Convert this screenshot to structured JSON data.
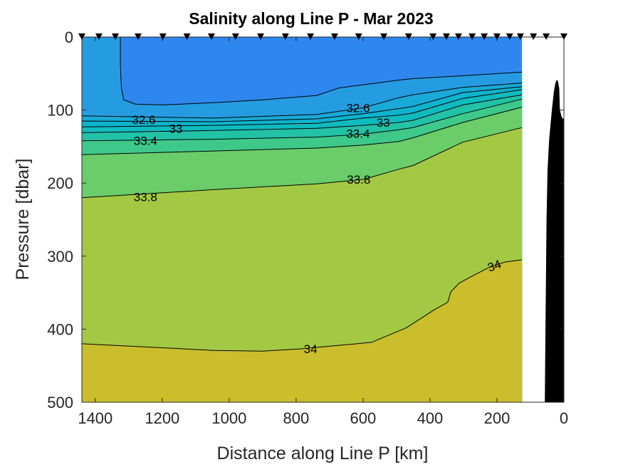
{
  "chart_data": {
    "type": "contour",
    "title": "Salinity along Line P - Mar 2023",
    "xlabel": "Distance along Line P [km]",
    "ylabel": "Pressure [dbar]",
    "xlim": [
      0,
      1440
    ],
    "ylim": [
      0,
      500
    ],
    "x_reversed": true,
    "y_reversed": true,
    "data_extent_km": [
      125,
      1440
    ],
    "xticks": [
      1400,
      1200,
      1000,
      800,
      600,
      400,
      200,
      0
    ],
    "yticks": [
      0,
      100,
      200,
      300,
      400,
      500
    ],
    "stations_km": [
      1440,
      1389,
      1340,
      1272,
      1198,
      1126,
      1053,
      981,
      906,
      832,
      757,
      685,
      613,
      538,
      464,
      391,
      351,
      315,
      274,
      238,
      200,
      162,
      130,
      91,
      53,
      0
    ],
    "base_color": "#2e87ee",
    "contours": [
      {
        "level": 32.4,
        "fill_below": "#259ce2",
        "points": [
          [
            1325,
            0
          ],
          [
            1325,
            40
          ],
          [
            1322,
            70
          ],
          [
            1315,
            86
          ],
          [
            1280,
            92
          ],
          [
            1200,
            93
          ],
          [
            1046,
            90
          ],
          [
            900,
            86
          ],
          [
            738,
            80
          ],
          [
            674,
            70
          ],
          [
            493,
            59
          ],
          [
            451,
            57
          ],
          [
            302,
            53
          ],
          [
            125,
            48
          ]
        ]
      },
      {
        "level": 32.6,
        "fill_below": "#1aaad8",
        "points": [
          [
            1440,
            108
          ],
          [
            1046,
            111
          ],
          [
            738,
            106
          ],
          [
            600,
            97
          ],
          [
            493,
            83
          ],
          [
            451,
            79
          ],
          [
            302,
            69
          ],
          [
            125,
            63
          ]
        ]
      },
      {
        "level": 32.8,
        "fill_below": "#0db4cf",
        "points": [
          [
            1440,
            115
          ],
          [
            1046,
            116
          ],
          [
            738,
            112
          ],
          [
            600,
            105
          ],
          [
            493,
            98
          ],
          [
            451,
            95
          ],
          [
            302,
            76
          ],
          [
            125,
            68
          ]
        ]
      },
      {
        "level": 33.0,
        "fill_below": "#0ebbbf",
        "points": [
          [
            1440,
            123
          ],
          [
            1046,
            121
          ],
          [
            738,
            118
          ],
          [
            600,
            111
          ],
          [
            493,
            107
          ],
          [
            451,
            104
          ],
          [
            302,
            84
          ],
          [
            125,
            72
          ]
        ]
      },
      {
        "level": 33.2,
        "fill_below": "#22c2a6",
        "points": [
          [
            1440,
            131
          ],
          [
            1046,
            128
          ],
          [
            738,
            125
          ],
          [
            600,
            121
          ],
          [
            493,
            117
          ],
          [
            451,
            114
          ],
          [
            302,
            93
          ],
          [
            125,
            79
          ]
        ]
      },
      {
        "level": 33.4,
        "fill_below": "#3ec98a",
        "points": [
          [
            1440,
            142
          ],
          [
            1046,
            140
          ],
          [
            738,
            137
          ],
          [
            600,
            133
          ],
          [
            493,
            127
          ],
          [
            451,
            124
          ],
          [
            302,
            105
          ],
          [
            125,
            85
          ]
        ]
      },
      {
        "level": 33.6,
        "fill_below": "#6acd6a",
        "points": [
          [
            1440,
            161
          ],
          [
            1046,
            156
          ],
          [
            738,
            152
          ],
          [
            600,
            148
          ],
          [
            493,
            143
          ],
          [
            451,
            138
          ],
          [
            302,
            117
          ],
          [
            125,
            96
          ]
        ]
      },
      {
        "level": 33.8,
        "fill_below": "#a3c944",
        "points": [
          [
            1440,
            220
          ],
          [
            1046,
            209
          ],
          [
            738,
            201
          ],
          [
            600,
            195
          ],
          [
            493,
            181
          ],
          [
            451,
            176
          ],
          [
            302,
            144
          ],
          [
            125,
            124
          ]
        ]
      },
      {
        "level": 34.0,
        "fill_below": "#cbbe2c",
        "points": [
          [
            1440,
            420
          ],
          [
            1046,
            429
          ],
          [
            900,
            430
          ],
          [
            788,
            427
          ],
          [
            575,
            418
          ],
          [
            470,
            398
          ],
          [
            389,
            374
          ],
          [
            347,
            363
          ],
          [
            338,
            349
          ],
          [
            313,
            337
          ],
          [
            281,
            329
          ],
          [
            218,
            314
          ],
          [
            175,
            308
          ],
          [
            125,
            305
          ]
        ]
      }
    ],
    "contour_labels": [
      {
        "text": "32.6",
        "km": 1255,
        "p": 113
      },
      {
        "text": "33",
        "km": 1270,
        "p": 125
      },
      {
        "text": "33.4",
        "km": 1250,
        "p": 142
      },
      {
        "text": "33.8",
        "km": 1250,
        "p": 219
      },
      {
        "text": "32.6",
        "km": 615,
        "p": 97
      },
      {
        "text": "33",
        "km": 642,
        "p": 117
      },
      {
        "text": "33.4",
        "km": 615,
        "p": 132
      },
      {
        "text": "33.8",
        "km": 613,
        "p": 195
      },
      {
        "text": "34",
        "km": 757,
        "p": 427
      },
      {
        "text": "34",
        "km": 208,
        "p": 313
      }
    ],
    "bathymetry": [
      [
        57,
        500
      ],
      [
        55,
        400
      ],
      [
        52,
        250
      ],
      [
        49,
        183
      ],
      [
        44,
        140
      ],
      [
        36,
        100
      ],
      [
        30,
        75
      ],
      [
        26,
        64
      ],
      [
        22,
        59
      ],
      [
        18,
        60
      ],
      [
        14,
        70
      ],
      [
        12,
        100
      ],
      [
        8,
        107
      ],
      [
        5,
        111
      ],
      [
        0,
        112
      ],
      [
        0,
        500
      ]
    ]
  }
}
